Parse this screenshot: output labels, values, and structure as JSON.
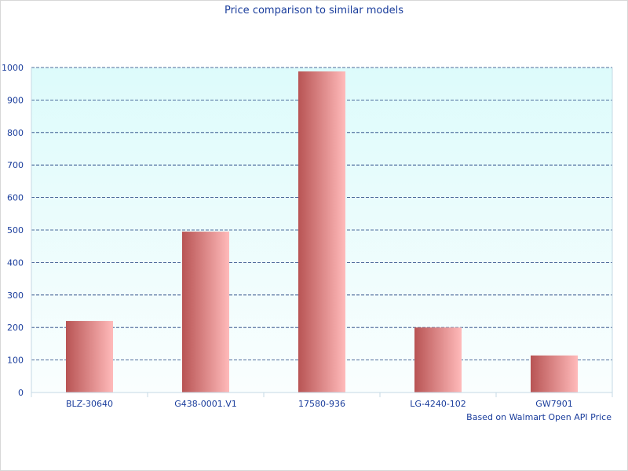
{
  "chart_data": {
    "type": "bar",
    "title": "Price comparison to similar models",
    "xlabel": "",
    "ylabel": "",
    "categories": [
      "BLZ-30640",
      "G438-0001.V1",
      "17580-936",
      "LG-4240-102",
      "GW7901"
    ],
    "values": [
      220,
      495,
      988,
      200,
      114
    ],
    "ylim": [
      0,
      1000
    ],
    "yticks": [
      0,
      100,
      200,
      300,
      400,
      500,
      600,
      700,
      800,
      900,
      1000
    ],
    "grid": true,
    "grid_style": "dashed",
    "legend": "none",
    "note": "Based on Walmart Open API Price",
    "colors": {
      "bar_dark": "#b85454",
      "bar_light": "#ffbaba",
      "plot_top": "#ddfbfb",
      "plot_bottom": "#fafefe",
      "grid": "#1a3d7c",
      "axis": "#c4d8e4",
      "text": "#1a3d9c"
    }
  }
}
